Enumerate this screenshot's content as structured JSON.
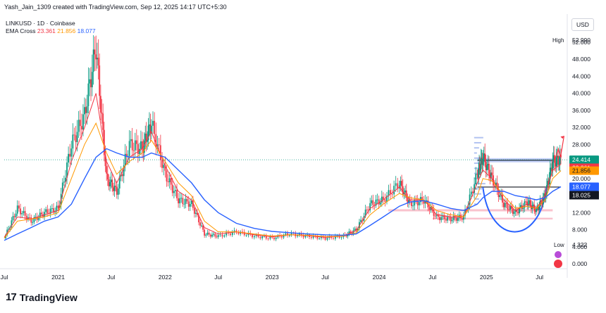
{
  "header": {
    "created_line": "Yash_Jain_1309 created with TradingView.com, Sep 12, 2025 14:17 UTC+5:30",
    "symbol_line": "LINKUSD · 1D · Coinbase",
    "indicator_name": "EMA Cross",
    "ema_values": [
      "23.361",
      "21.856",
      "18.077"
    ]
  },
  "currency_button": "USD",
  "footer": {
    "logo_text": "TradingView"
  },
  "colors": {
    "up": "#089981",
    "down": "#f23645",
    "ema_fast": "#f23645",
    "ema_mid": "#ff9800",
    "ema_slow": "#2962ff",
    "zone_pink": "#f7a8b8",
    "zone_blue": "#90a8f0",
    "current_price": "#089981"
  },
  "chart_data": {
    "type": "line",
    "series_style": "candlestick",
    "title": "LINKUSD · 1D · Coinbase",
    "x_tick_labels": [
      "Jul",
      "2021",
      "Jul",
      "2022",
      "Jul",
      "2023",
      "Jul",
      "2024",
      "Jul",
      "2025",
      "Jul"
    ],
    "x_tick_dates": [
      "2020-07-01",
      "2021-01-01",
      "2021-07-01",
      "2022-01-01",
      "2022-07-01",
      "2023-01-01",
      "2023-07-01",
      "2024-01-01",
      "2024-07-01",
      "2025-01-01",
      "2025-07-01"
    ],
    "y_tick_labels": [
      "52.000",
      "48.000",
      "44.000",
      "40.000",
      "36.000",
      "32.000",
      "28.000",
      "24.000",
      "20.000",
      "16.000",
      "12.000",
      "8.000",
      "4.000",
      "0.000"
    ],
    "y_ticks": [
      52,
      48,
      44,
      40,
      36,
      32,
      28,
      24,
      20,
      16,
      12,
      8,
      4,
      0
    ],
    "ylim": [
      0,
      55
    ],
    "axis_labels": {
      "high_label": "High",
      "high_value": "52.990",
      "low_label": "Low",
      "low_value": "4.322",
      "current_price": "24.414",
      "countdown": "15:12:37",
      "ema_fast_value": "23.361",
      "ema_mid_value": "21.856",
      "ema_slow_value": "18.077",
      "level_value": "18.025"
    },
    "price_series": {
      "dates": [
        "2020-07-01",
        "2020-08-15",
        "2020-10-01",
        "2020-11-15",
        "2021-01-01",
        "2021-02-15",
        "2021-04-01",
        "2021-05-10",
        "2021-06-15",
        "2021-07-20",
        "2021-09-01",
        "2021-10-15",
        "2021-11-15",
        "2022-01-01",
        "2022-02-15",
        "2022-04-01",
        "2022-05-15",
        "2022-07-01",
        "2022-09-01",
        "2022-11-01",
        "2023-01-01",
        "2023-03-01",
        "2023-05-01",
        "2023-07-01",
        "2023-09-01",
        "2023-10-15",
        "2023-12-01",
        "2024-01-15",
        "2024-03-10",
        "2024-04-15",
        "2024-06-01",
        "2024-07-15",
        "2024-09-01",
        "2024-10-15",
        "2024-12-01",
        "2024-12-20",
        "2025-01-20",
        "2025-03-01",
        "2025-04-10",
        "2025-05-20",
        "2025-06-20",
        "2025-07-20",
        "2025-08-15",
        "2025-09-12"
      ],
      "close": [
        6,
        13,
        10,
        12,
        13,
        28,
        35,
        51,
        20,
        17,
        28,
        27,
        33,
        21,
        15,
        14,
        7,
        6.5,
        7.5,
        6.5,
        6,
        7,
        6.5,
        6,
        6.5,
        8,
        14,
        15,
        19,
        14,
        15,
        11,
        10.5,
        11,
        21,
        25,
        20,
        14,
        12,
        14.5,
        12.5,
        16,
        24,
        24.414
      ]
    },
    "ema_series": [
      {
        "name": "EMA Cross 23.361",
        "values": [
          6.2,
          11,
          10.5,
          11.5,
          12.5,
          24,
          32,
          40,
          24,
          19,
          25,
          27,
          31,
          23,
          17,
          15,
          8.5,
          7,
          7.5,
          6.8,
          6.3,
          6.8,
          6.6,
          6.2,
          6.5,
          7.8,
          13,
          15,
          18,
          15,
          15,
          11.5,
          11,
          11,
          19,
          22,
          20,
          15,
          12.5,
          14,
          13,
          16,
          22,
          23.361
        ]
      },
      {
        "name": "EMA Cross 21.856",
        "values": [
          6,
          10,
          10.5,
          11,
          12,
          20,
          28,
          33,
          26,
          21,
          24,
          26,
          29,
          24,
          19,
          16,
          10,
          7.5,
          7.5,
          7,
          6.5,
          6.8,
          6.7,
          6.4,
          6.5,
          7.3,
          11.5,
          14,
          16.5,
          15.5,
          15,
          12.5,
          11.5,
          11,
          16,
          20,
          19.5,
          16,
          13,
          13.5,
          13,
          15,
          20,
          21.856
        ]
      },
      {
        "name": "EMA Cross 18.077",
        "values": [
          5.5,
          7,
          8.5,
          10,
          11,
          14,
          20,
          25,
          27,
          26,
          25,
          25,
          26,
          25,
          22,
          19,
          15,
          12,
          9.5,
          8.3,
          7.6,
          7.3,
          7,
          6.8,
          6.7,
          7,
          9,
          11,
          13.5,
          14.5,
          14.8,
          14,
          13,
          12.5,
          14,
          15.5,
          17,
          17,
          16,
          15.5,
          15,
          15.5,
          17,
          18.077
        ]
      }
    ],
    "price_lines": [
      24.414,
      23.361,
      21.856,
      18.077,
      18.025
    ],
    "annotation_levels": [
      {
        "kind": "support-zone",
        "y_range": [
          12.3,
          12.8
        ],
        "x_range": [
          "2024-02-01",
          "2025-08-15"
        ]
      },
      {
        "kind": "support-zone",
        "y_range": [
          10.4,
          10.8
        ],
        "x_range": [
          "2024-07-01",
          "2025-08-15"
        ]
      },
      {
        "kind": "resistance-line",
        "y": 24.3,
        "x_range": [
          "2024-12-01",
          "2025-08-20"
        ]
      },
      {
        "kind": "neckline",
        "y": 18.0,
        "x_range": [
          "2024-12-01",
          "2025-09-12"
        ]
      }
    ],
    "grid": false
  }
}
